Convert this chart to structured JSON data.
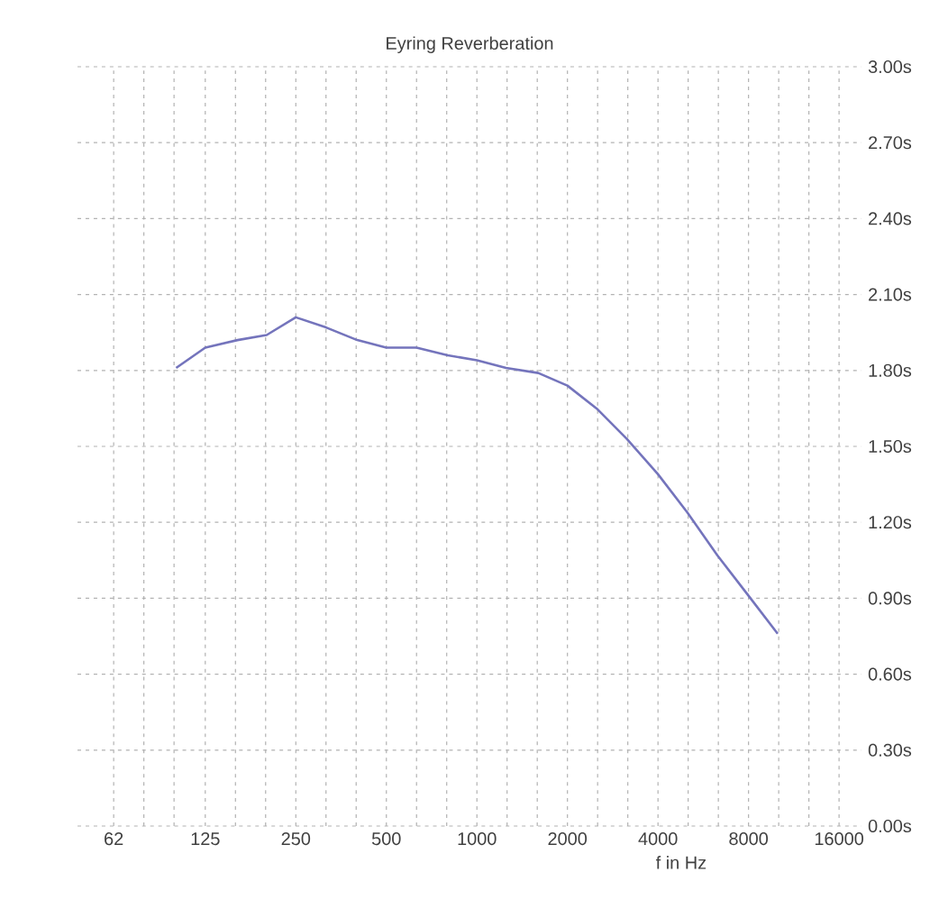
{
  "chart_data": {
    "type": "line",
    "title": "Eyring Reverberation",
    "xlabel": "f in Hz",
    "log": "x",
    "grid": true,
    "marker": "none",
    "line_style": "solid",
    "x": [
      100,
      125,
      160,
      200,
      250,
      315,
      400,
      500,
      630,
      800,
      1000,
      1250,
      1600,
      2000,
      2500,
      3150,
      4000,
      5000,
      6300,
      8000,
      10000
    ],
    "series": [
      {
        "color": "#7474bc",
        "values": [
          1.81,
          1.89,
          1.92,
          1.94,
          2.01,
          1.97,
          1.92,
          1.89,
          1.89,
          1.86,
          1.84,
          1.81,
          1.79,
          1.74,
          1.65,
          1.53,
          1.39,
          1.24,
          1.07,
          0.91,
          0.76
        ]
      }
    ],
    "xlim": [
      47,
      19000
    ],
    "ylim": [
      0,
      3
    ],
    "xticks": [
      62,
      125,
      250,
      500,
      1000,
      2000,
      4000,
      8000,
      16000
    ],
    "yticks": [
      {
        "value": 0,
        "label": "0.00s"
      },
      {
        "value": 0.3,
        "label": "0.30s"
      },
      {
        "value": 0.6,
        "label": "0.60s"
      },
      {
        "value": 0.9,
        "label": "0.90s"
      },
      {
        "value": 1.2,
        "label": "1.20s"
      },
      {
        "value": 1.5,
        "label": "1.50s"
      },
      {
        "value": 1.8,
        "label": "1.80s"
      },
      {
        "value": 2.1,
        "label": "2.10s"
      },
      {
        "value": 2.4,
        "label": "2.40s"
      },
      {
        "value": 2.7,
        "label": "2.70s"
      },
      {
        "value": 3,
        "label": "3.00s"
      }
    ]
  }
}
